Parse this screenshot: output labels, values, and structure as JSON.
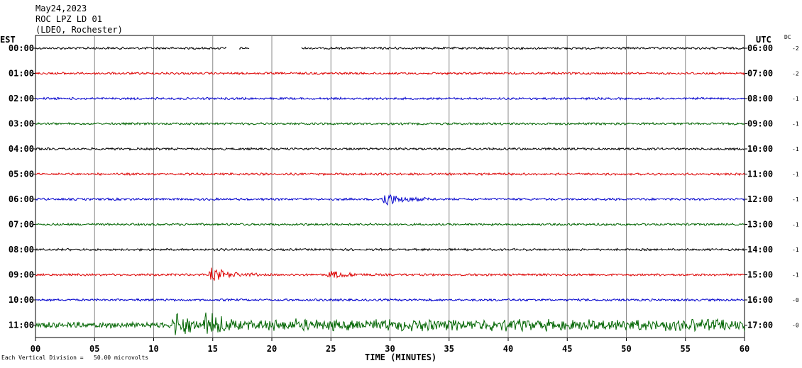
{
  "header": {
    "date": "May24,2023",
    "station": "ROC LPZ LD 01",
    "network": "(LDEO, Rochester)"
  },
  "left_axis_label": "EST",
  "right_axis_label": "UTC",
  "offset_column_label": "DC",
  "footer_note": "Each Vertical Division =   50.00 microvolts",
  "chart_data": {
    "type": "line",
    "title": "May24,2023 ROC LPZ LD 01 (LDEO, Rochester)",
    "xlabel": "TIME (MINUTES)",
    "x_ticks": [
      "00",
      "05",
      "10",
      "15",
      "20",
      "25",
      "30",
      "35",
      "40",
      "45",
      "50",
      "55",
      "60"
    ],
    "xlim": [
      0,
      60
    ],
    "grid": true,
    "vertical_division": "50.00 microvolts",
    "rows": [
      {
        "est": "00:00",
        "utc": "06:00",
        "color": "#000000",
        "offset": "-2",
        "amplitude": "low",
        "gaps": [
          [
            16.2,
            17.2
          ],
          [
            18.1,
            22.5
          ]
        ]
      },
      {
        "est": "01:00",
        "utc": "07:00",
        "color": "#dd0000",
        "offset": "-2",
        "amplitude": "low",
        "gaps": []
      },
      {
        "est": "02:00",
        "utc": "08:00",
        "color": "#0000cc",
        "offset": "-1",
        "amplitude": "low",
        "gaps": []
      },
      {
        "est": "03:00",
        "utc": "09:00",
        "color": "#006400",
        "offset": "-1",
        "amplitude": "low",
        "gaps": []
      },
      {
        "est": "04:00",
        "utc": "10:00",
        "color": "#000000",
        "offset": "-1",
        "amplitude": "low",
        "gaps": []
      },
      {
        "est": "05:00",
        "utc": "11:00",
        "color": "#dd0000",
        "offset": "-1",
        "amplitude": "low",
        "gaps": []
      },
      {
        "est": "06:00",
        "utc": "12:00",
        "color": "#0000cc",
        "offset": "-1",
        "amplitude": "low",
        "events": [
          {
            "minute": 29.6,
            "strength": "moderate"
          }
        ],
        "gaps": []
      },
      {
        "est": "07:00",
        "utc": "13:00",
        "color": "#006400",
        "offset": "-1",
        "amplitude": "low",
        "gaps": []
      },
      {
        "est": "08:00",
        "utc": "14:00",
        "color": "#000000",
        "offset": "-1",
        "amplitude": "low",
        "gaps": []
      },
      {
        "est": "09:00",
        "utc": "15:00",
        "color": "#dd0000",
        "offset": "-1",
        "amplitude": "low",
        "events": [
          {
            "minute": 15.0,
            "strength": "moderate"
          },
          {
            "minute": 25.0,
            "strength": "weak"
          }
        ],
        "gaps": []
      },
      {
        "est": "10:00",
        "utc": "16:00",
        "color": "#0000cc",
        "offset": "-0",
        "amplitude": "low",
        "gaps": []
      },
      {
        "est": "11:00",
        "utc": "17:00",
        "color": "#006400",
        "offset": "-0",
        "amplitude": "high",
        "events": [
          {
            "minute": 12.0,
            "strength": "strong"
          },
          {
            "minute": 14.5,
            "strength": "strong"
          }
        ],
        "gaps": []
      }
    ]
  }
}
